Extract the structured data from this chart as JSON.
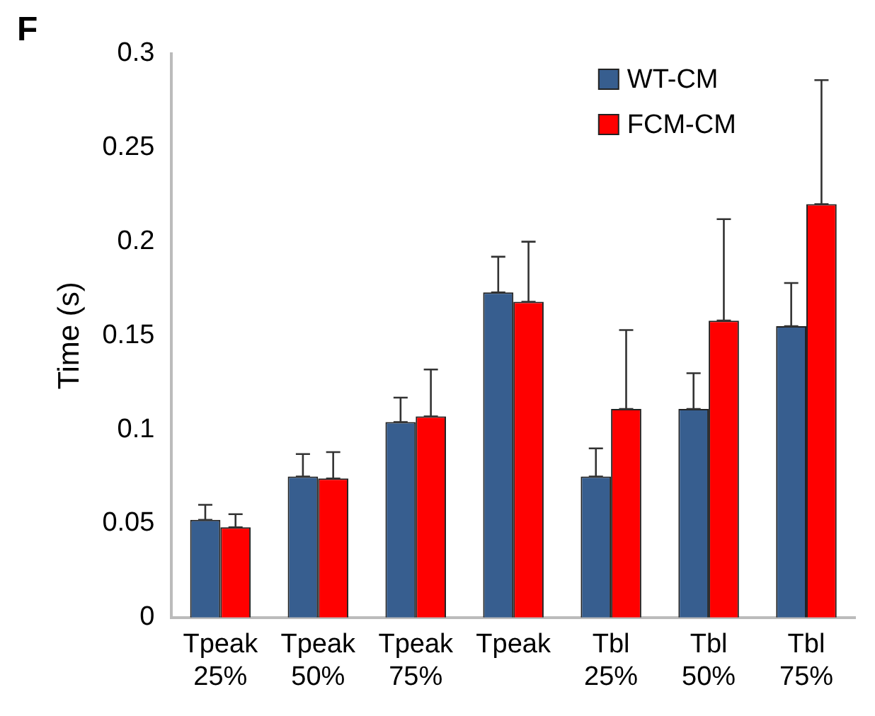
{
  "chart_data": {
    "type": "bar",
    "ylabel": "Time (s)",
    "categories": [
      "Tpeak 25%",
      "Tpeak 50%",
      "Tpeak 75%",
      "Tpeak",
      "Tbl 25%",
      "Tbl 50%",
      "Tbl 75%"
    ],
    "series": [
      {
        "name": "WT-CM",
        "color": "#375e8f",
        "values": [
          0.052,
          0.075,
          0.104,
          0.173,
          0.075,
          0.111,
          0.155
        ],
        "errors": [
          [
            0.052,
            0.06
          ],
          [
            0.075,
            0.087
          ],
          [
            0.104,
            0.117
          ],
          [
            0.173,
            0.192
          ],
          [
            0.075,
            0.09
          ],
          [
            0.111,
            0.13
          ],
          [
            0.155,
            0.178
          ]
        ]
      },
      {
        "name": "FCM-CM",
        "color": "#ff0000",
        "values": [
          0.048,
          0.074,
          0.107,
          0.168,
          0.111,
          0.158,
          0.22
        ],
        "errors": [
          [
            0.048,
            0.055
          ],
          [
            0.074,
            0.088
          ],
          [
            0.107,
            0.132
          ],
          [
            0.168,
            0.2
          ],
          [
            0.111,
            0.153
          ],
          [
            0.158,
            0.212
          ],
          [
            0.22,
            0.286
          ]
        ]
      }
    ],
    "ylim": [
      0,
      0.3
    ],
    "yticks": [
      0,
      0.05,
      0.1,
      0.15,
      0.2,
      0.25,
      0.3
    ],
    "grid": false,
    "legend": "top right",
    "annotations": [
      "F"
    ]
  }
}
